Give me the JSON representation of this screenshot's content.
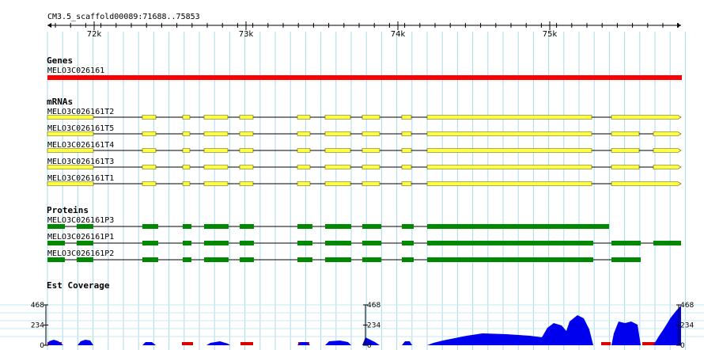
{
  "ruler": {
    "segment": "CM3.5_scaffold00089:71688..75853",
    "ticks": [
      "72k",
      "73k",
      "74k",
      "75k"
    ]
  },
  "genes": {
    "title": "Genes",
    "items": [
      {
        "name": "MELO3C026161",
        "color": "#ff0000"
      }
    ]
  },
  "mrnas": {
    "title": "mRNAs",
    "color": "#ffff44",
    "items": [
      {
        "name": "MELO3C026161T2"
      },
      {
        "name": "MELO3C026161T5"
      },
      {
        "name": "MELO3C026161T4"
      },
      {
        "name": "MELO3C026161T3"
      },
      {
        "name": "MELO3C026161T1"
      }
    ]
  },
  "proteins": {
    "title": "Proteins",
    "color": "#008800",
    "items": [
      {
        "name": "MELO3C026161P3"
      },
      {
        "name": "MELO3C026161P1"
      },
      {
        "name": "MELO3C026161P2"
      }
    ]
  },
  "coverage": {
    "title": "Est Coverage",
    "color": "#0000ee",
    "labels": {
      "max": "468",
      "mid": "234",
      "min": "0"
    }
  }
}
